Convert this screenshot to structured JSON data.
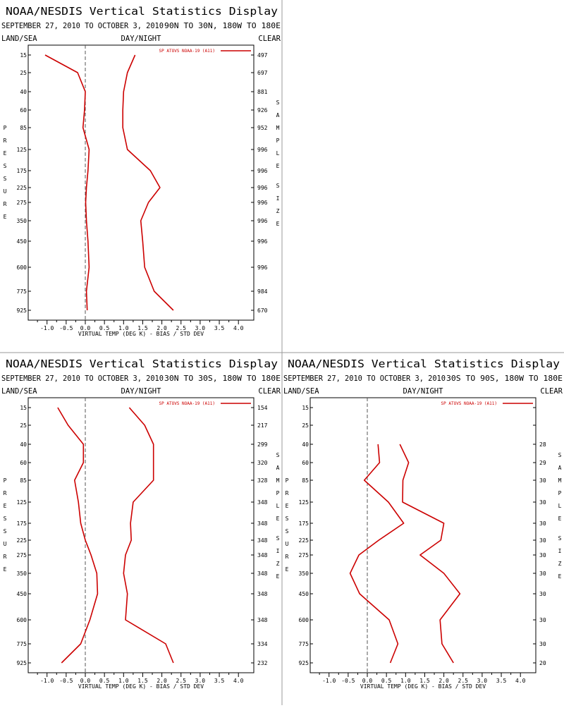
{
  "divider_color": "#999999",
  "series_color": "#cc0000",
  "axis_color": "#000000",
  "zero_line_color": "#555555",
  "chart_data": [
    {
      "type": "line",
      "slot": "top-left",
      "title": "NOAA/NESDIS Vertical Statistics Display",
      "date_range": "SEPTEMBER 27, 2010 TO OCTOBER 3, 2010",
      "region": "90N TO 30N, 180W TO 180E",
      "left_header": "LAND/SEA",
      "center_header": "DAY/NIGHT",
      "right_header": "CLEAR",
      "ylabel": "PRESSURE",
      "y2label": "SAMPLE SIZE",
      "xlabel": "VIRTUAL TEMP (DEG K) - BIAS / STD DEV",
      "legend": "SP ATOVS NOAA-19 (A11)",
      "legend_placement": "top-right",
      "xlim": [
        -1.5,
        4.5
      ],
      "xticks": [
        "-1.0",
        "-0.5",
        "0.0",
        "0.5",
        "1.0",
        "1.5",
        "2.0",
        "2.5",
        "3.0",
        "3.5",
        "4.0"
      ],
      "pressure_levels": [
        "15",
        "25",
        "40",
        "60",
        "85",
        "125",
        "175",
        "225",
        "275",
        "350",
        "450",
        "600",
        "775",
        "925"
      ],
      "sample_size": [
        "497",
        "697",
        "881",
        "926",
        "952",
        "996",
        "996",
        "996",
        "996",
        "996",
        "996",
        "996",
        "984",
        "670"
      ],
      "series": [
        {
          "values": [
            -1.05,
            -0.2,
            0.0,
            -0.02,
            -0.06,
            0.1,
            0.07,
            0.03,
            0.01,
            0.03,
            0.07,
            0.1,
            0.03,
            0.05
          ]
        },
        {
          "values": [
            1.3,
            1.1,
            1.0,
            0.98,
            0.98,
            1.1,
            1.7,
            1.95,
            1.65,
            1.45,
            1.5,
            1.55,
            1.8,
            2.3
          ]
        }
      ]
    },
    {
      "type": "line",
      "slot": "bottom-left",
      "title": "NOAA/NESDIS Vertical Statistics Display",
      "date_range": "SEPTEMBER 27, 2010 TO OCTOBER 3, 2010",
      "region": "30N TO 30S, 180W TO 180E",
      "left_header": "LAND/SEA",
      "center_header": "DAY/NIGHT",
      "right_header": "CLEAR",
      "ylabel": "PRESSURE",
      "y2label": "SAMPLE SIZE",
      "xlabel": "VIRTUAL TEMP (DEG K) - BIAS / STD DEV",
      "legend": "SP ATOVS NOAA-19 (A11)",
      "legend_placement": "top-right",
      "xlim": [
        -1.5,
        4.5
      ],
      "xticks": [
        "-1.0",
        "-0.5",
        "0.0",
        "0.5",
        "1.0",
        "1.5",
        "2.0",
        "2.5",
        "3.0",
        "3.5",
        "4.0"
      ],
      "pressure_levels": [
        "15",
        "25",
        "40",
        "60",
        "85",
        "125",
        "175",
        "225",
        "275",
        "350",
        "450",
        "600",
        "775",
        "925"
      ],
      "sample_size": [
        "154",
        "217",
        "299",
        "320",
        "328",
        "348",
        "348",
        "348",
        "348",
        "348",
        "348",
        "348",
        "334",
        "232"
      ],
      "series": [
        {
          "values": [
            -0.72,
            -0.45,
            -0.05,
            -0.05,
            -0.28,
            -0.18,
            -0.12,
            0.0,
            0.15,
            0.3,
            0.32,
            0.12,
            -0.12,
            -0.62
          ]
        },
        {
          "values": [
            1.15,
            1.55,
            1.78,
            1.78,
            1.78,
            1.25,
            1.18,
            1.2,
            1.05,
            1.0,
            1.1,
            1.05,
            2.1,
            2.3
          ]
        }
      ]
    },
    {
      "type": "line",
      "slot": "bottom-right",
      "title": "NOAA/NESDIS Vertical Statistics Display",
      "date_range": "SEPTEMBER 27, 2010 TO OCTOBER 3, 2010",
      "region": "30S TO 90S, 180W TO 180E",
      "left_header": "LAND/SEA",
      "center_header": "DAY/NIGHT",
      "right_header": "CLEAR",
      "ylabel": "PRESSURE",
      "y2label": "SAMPLE SIZE",
      "xlabel": "VIRTUAL TEMP (DEG K) - BIAS / STD DEV",
      "legend": "SP ATOVS NOAA-19 (A11)",
      "legend_placement": "top-right",
      "xlim": [
        -1.5,
        4.5
      ],
      "xticks": [
        "-1.0",
        "-0.5",
        "0.0",
        "0.5",
        "1.0",
        "1.5",
        "2.0",
        "2.5",
        "3.0",
        "3.5",
        "4.0"
      ],
      "pressure_levels": [
        "15",
        "25",
        "40",
        "60",
        "85",
        "125",
        "175",
        "225",
        "275",
        "350",
        "450",
        "600",
        "775",
        "925"
      ],
      "sample_size": [
        "",
        "",
        "28",
        "29",
        "30",
        "30",
        "30",
        "30",
        "30",
        "30",
        "30",
        "30",
        "30",
        "20"
      ],
      "series": [
        {
          "values": [
            null,
            null,
            0.28,
            0.32,
            -0.08,
            0.55,
            0.95,
            0.3,
            -0.22,
            -0.45,
            -0.2,
            0.57,
            0.8,
            0.6
          ]
        },
        {
          "values": [
            null,
            null,
            0.85,
            1.08,
            0.93,
            0.92,
            2.0,
            1.92,
            1.38,
            2.0,
            2.42,
            1.9,
            1.95,
            2.25
          ]
        }
      ]
    }
  ]
}
